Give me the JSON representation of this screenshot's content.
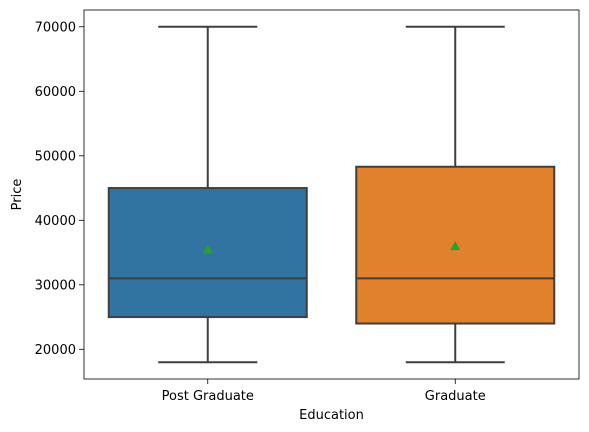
{
  "chart_data": {
    "type": "box",
    "xlabel": "Education",
    "ylabel": "Price",
    "ylim": [
      15400,
      72600
    ],
    "yticks": [
      20000,
      30000,
      40000,
      50000,
      60000,
      70000
    ],
    "categories": [
      "Post Graduate",
      "Graduate"
    ],
    "boxes": [
      {
        "category": "Post Graduate",
        "whisker_low": 18000,
        "q1": 25000,
        "median": 31000,
        "q3": 45000,
        "whisker_high": 70000,
        "mean": 35500,
        "color": "#3274a1"
      },
      {
        "category": "Graduate",
        "whisker_low": 18000,
        "q1": 24000,
        "median": 31000,
        "q3": 48300,
        "whisker_high": 70000,
        "mean": 36000,
        "color": "#e1812c"
      }
    ],
    "mean_marker_color": "#2ca02c",
    "line_color": "#3f3f3f",
    "grid": false
  }
}
